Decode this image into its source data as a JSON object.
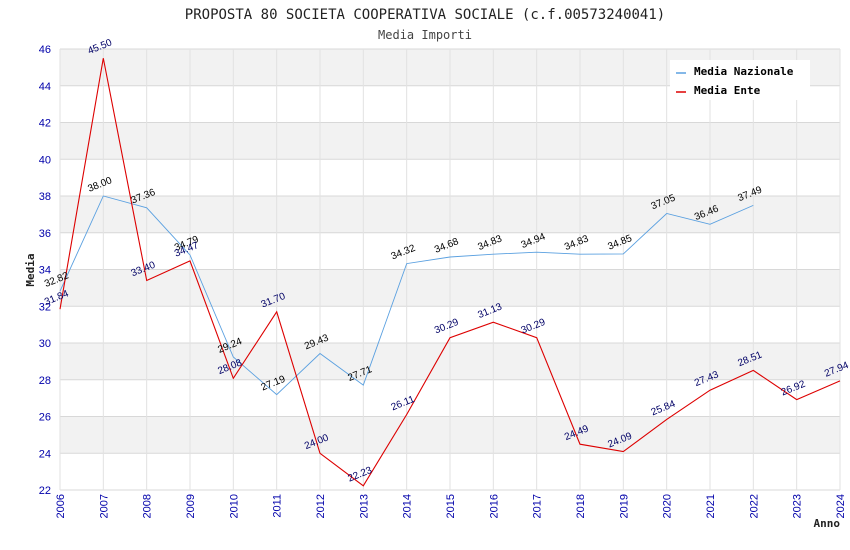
{
  "chart_data": {
    "type": "line",
    "title": "PROPOSTA 80 SOCIETA COOPERATIVA SOCIALE (c.f.00573240041)",
    "subtitle": "Media Importi",
    "xlabel": "Anno",
    "ylabel": "Media",
    "ylim": [
      22,
      46
    ],
    "y_ticks": [
      "22",
      "24",
      "26",
      "28",
      "30",
      "32",
      "34",
      "36",
      "38",
      "40",
      "42",
      "44",
      "46"
    ],
    "categories": [
      "2006",
      "2007",
      "2008",
      "2009",
      "2010",
      "2011",
      "2012",
      "2013",
      "2014",
      "2015",
      "2016",
      "2017",
      "2018",
      "2019",
      "2020",
      "2021",
      "2022",
      "2023",
      "2024"
    ],
    "grid": true,
    "legend_position": "top-right",
    "series": [
      {
        "name": "Media Nazionale",
        "color": "#5aa0e0",
        "values": [
          32.82,
          38.0,
          37.36,
          34.79,
          29.24,
          27.19,
          29.43,
          27.71,
          34.32,
          34.68,
          34.83,
          34.94,
          34.83,
          34.85,
          37.05,
          36.46,
          37.49,
          null,
          null
        ],
        "labels": [
          "32.82",
          "38.00",
          "37.36",
          "34.79",
          "29.24",
          "27.19",
          "29.43",
          "27.71",
          "34.32",
          "34.68",
          "34.83",
          "34.94",
          "34.83",
          "34.85",
          "37.05",
          "36.46",
          "37.49",
          "",
          ""
        ]
      },
      {
        "name": "Media Ente",
        "color": "#dd0000",
        "values": [
          31.84,
          45.5,
          33.4,
          34.47,
          28.08,
          31.7,
          24.0,
          22.23,
          26.11,
          30.29,
          31.13,
          30.29,
          24.49,
          24.09,
          25.84,
          27.43,
          28.51,
          26.92,
          27.94
        ],
        "labels": [
          "31.84",
          "45.50",
          "33.40",
          "34.47",
          "28.08",
          "31.70",
          "24.00",
          "22.23",
          "26.11",
          "30.29",
          "31.13",
          "30.29",
          "24.49",
          "24.09",
          "25.84",
          "27.43",
          "28.51",
          "26.92",
          "27.94"
        ]
      }
    ]
  }
}
